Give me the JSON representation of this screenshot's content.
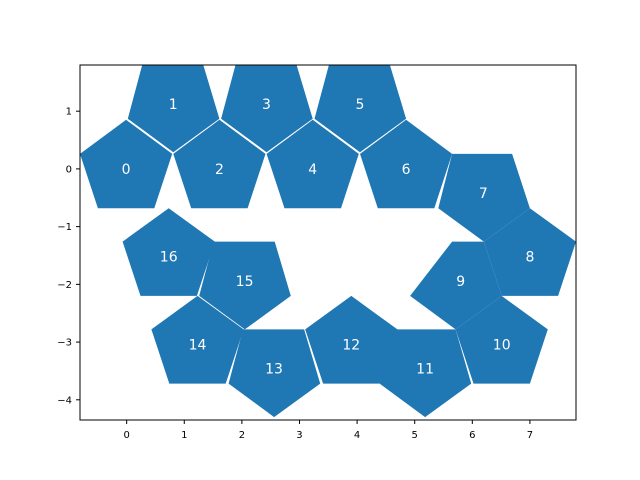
{
  "chart_data": {
    "type": "scatter",
    "title": "",
    "xlabel": "",
    "ylabel": "",
    "xlim": [
      -0.81,
      7.8
    ],
    "ylim": [
      -4.35,
      1.8
    ],
    "xticks": [
      0,
      1,
      2,
      3,
      4,
      5,
      6,
      7
    ],
    "yticks": [
      1,
      0,
      -1,
      -2,
      -3,
      -4
    ],
    "xtick_labels": [
      "0",
      "1",
      "2",
      "3",
      "4",
      "5",
      "6",
      "7"
    ],
    "ytick_labels": [
      "1",
      "0",
      "−1",
      "−2",
      "−3",
      "−4"
    ],
    "grid": false,
    "fill_color": "#1f77b4",
    "label_color": "#ffffff",
    "shapes": [
      {
        "label": "0",
        "vertices": [
          [
            -0.81,
            0.26
          ],
          [
            -0.01,
            0.85
          ],
          [
            0.79,
            0.26
          ],
          [
            0.48,
            -0.68
          ],
          [
            -0.5,
            -0.68
          ]
        ]
      },
      {
        "label": "1",
        "vertices": [
          [
            0.27,
            1.8
          ],
          [
            1.33,
            1.8
          ],
          [
            1.61,
            0.87
          ],
          [
            0.81,
            0.29
          ],
          [
            0.02,
            0.87
          ]
        ]
      },
      {
        "label": "2",
        "vertices": [
          [
            0.81,
            0.26
          ],
          [
            1.61,
            0.85
          ],
          [
            2.41,
            0.26
          ],
          [
            2.1,
            -0.68
          ],
          [
            1.12,
            -0.68
          ]
        ]
      },
      {
        "label": "3",
        "vertices": [
          [
            1.89,
            1.8
          ],
          [
            2.95,
            1.8
          ],
          [
            3.23,
            0.87
          ],
          [
            2.43,
            0.29
          ],
          [
            1.64,
            0.87
          ]
        ]
      },
      {
        "label": "4",
        "vertices": [
          [
            2.43,
            0.26
          ],
          [
            3.23,
            0.85
          ],
          [
            4.03,
            0.26
          ],
          [
            3.72,
            -0.68
          ],
          [
            2.74,
            -0.68
          ]
        ]
      },
      {
        "label": "5",
        "vertices": [
          [
            3.51,
            1.8
          ],
          [
            4.57,
            1.8
          ],
          [
            4.85,
            0.87
          ],
          [
            4.05,
            0.29
          ],
          [
            3.26,
            0.87
          ]
        ]
      },
      {
        "label": "6",
        "vertices": [
          [
            4.05,
            0.26
          ],
          [
            4.85,
            0.85
          ],
          [
            5.65,
            0.26
          ],
          [
            5.34,
            -0.68
          ],
          [
            4.36,
            -0.68
          ]
        ]
      },
      {
        "label": "7",
        "vertices": [
          [
            5.65,
            0.26
          ],
          [
            6.69,
            0.26
          ],
          [
            7.0,
            -0.68
          ],
          [
            6.2,
            -1.26
          ],
          [
            5.41,
            -0.68
          ]
        ]
      },
      {
        "label": "8",
        "vertices": [
          [
            6.2,
            -1.26
          ],
          [
            7.0,
            -0.68
          ],
          [
            7.8,
            -1.26
          ],
          [
            7.49,
            -2.2
          ],
          [
            6.51,
            -2.2
          ]
        ]
      },
      {
        "label": "9",
        "vertices": [
          [
            5.65,
            -1.26
          ],
          [
            6.2,
            -1.26
          ],
          [
            6.51,
            -2.2
          ],
          [
            5.71,
            -2.78
          ],
          [
            4.92,
            -2.2
          ]
        ]
      },
      {
        "label": "10",
        "vertices": [
          [
            5.71,
            -2.78
          ],
          [
            6.51,
            -2.2
          ],
          [
            7.31,
            -2.78
          ],
          [
            7.0,
            -3.72
          ],
          [
            6.02,
            -3.72
          ]
        ]
      },
      {
        "label": "11",
        "vertices": [
          [
            4.64,
            -2.78
          ],
          [
            5.71,
            -2.78
          ],
          [
            5.98,
            -3.72
          ],
          [
            5.18,
            -4.3
          ],
          [
            4.39,
            -3.72
          ]
        ]
      },
      {
        "label": "12",
        "vertices": [
          [
            3.1,
            -2.78
          ],
          [
            3.9,
            -2.2
          ],
          [
            4.7,
            -2.78
          ],
          [
            4.39,
            -3.72
          ],
          [
            3.41,
            -3.72
          ]
        ]
      },
      {
        "label": "13",
        "vertices": [
          [
            2.02,
            -2.78
          ],
          [
            3.08,
            -2.78
          ],
          [
            3.36,
            -3.72
          ],
          [
            2.56,
            -4.3
          ],
          [
            1.77,
            -3.72
          ]
        ]
      },
      {
        "label": "14",
        "vertices": [
          [
            0.43,
            -2.78
          ],
          [
            1.23,
            -2.2
          ],
          [
            2.03,
            -2.78
          ],
          [
            1.72,
            -3.72
          ],
          [
            0.74,
            -3.72
          ]
        ]
      },
      {
        "label": "15",
        "vertices": [
          [
            1.51,
            -1.26
          ],
          [
            2.57,
            -1.26
          ],
          [
            2.85,
            -2.2
          ],
          [
            2.05,
            -2.78
          ],
          [
            1.26,
            -2.2
          ]
        ]
      },
      {
        "label": "16",
        "vertices": [
          [
            -0.07,
            -1.26
          ],
          [
            0.73,
            -0.68
          ],
          [
            1.53,
            -1.26
          ],
          [
            1.22,
            -2.2
          ],
          [
            0.24,
            -2.2
          ]
        ]
      }
    ]
  }
}
